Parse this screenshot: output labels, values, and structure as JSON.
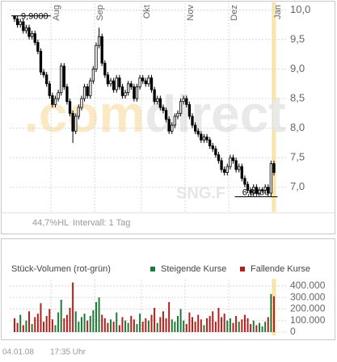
{
  "chart_data": [
    {
      "type": "candlestick",
      "categories": [
        null,
        null,
        null,
        null,
        null,
        null,
        null,
        null,
        null,
        null,
        null,
        null,
        null,
        "Aug",
        null,
        null,
        null,
        null,
        null,
        null,
        null,
        null,
        null,
        null,
        null,
        null,
        null,
        null,
        "Sep",
        null,
        null,
        null,
        null,
        null,
        null,
        null,
        null,
        null,
        null,
        null,
        null,
        null,
        null,
        null,
        "Okt",
        null,
        null,
        null,
        null,
        null,
        null,
        null,
        null,
        null,
        null,
        null,
        null,
        null,
        null,
        "Nov",
        null,
        null,
        null,
        null,
        null,
        null,
        null,
        null,
        null,
        null,
        null,
        null,
        null,
        null,
        "Dez",
        null,
        null,
        null,
        null,
        null,
        null,
        null,
        null,
        null,
        null,
        null,
        null,
        null,
        null,
        "Jan"
      ],
      "open": [
        9.9,
        9.85,
        9.75,
        9.8,
        9.65,
        9.7,
        9.55,
        9.6,
        9.45,
        9.3,
        8.95,
        8.9,
        8.75,
        8.55,
        8.4,
        8.5,
        8.6,
        9.05,
        8.7,
        8.45,
        8.25,
        7.95,
        8.2,
        8.35,
        8.5,
        8.7,
        8.55,
        8.8,
        9.0,
        9.4,
        9.55,
        9.1,
        8.9,
        8.75,
        8.8,
        8.65,
        8.85,
        8.7,
        8.55,
        8.6,
        8.75,
        8.7,
        8.5,
        8.7,
        8.85,
        8.8,
        8.75,
        8.85,
        8.65,
        8.45,
        8.5,
        8.35,
        8.3,
        8.15,
        7.95,
        8.05,
        8.2,
        8.25,
        8.45,
        8.5,
        8.4,
        8.2,
        8.05,
        7.95,
        7.9,
        7.8,
        7.85,
        7.8,
        7.7,
        7.65,
        7.55,
        7.45,
        7.3,
        7.25,
        7.35,
        7.5,
        7.45,
        7.3,
        7.35,
        7.15,
        7.05,
        6.95,
        6.9,
        7.0,
        6.9,
        6.95,
        6.95,
        7.0,
        6.9,
        7.4
      ],
      "high": [
        9.9,
        9.9,
        9.85,
        9.85,
        9.75,
        9.75,
        9.65,
        9.65,
        9.5,
        9.35,
        9.0,
        8.95,
        8.8,
        8.6,
        8.55,
        8.65,
        9.1,
        9.1,
        8.75,
        8.5,
        8.3,
        8.25,
        8.4,
        8.55,
        8.75,
        8.75,
        8.85,
        9.05,
        9.45,
        9.7,
        9.6,
        9.15,
        8.95,
        8.85,
        8.85,
        8.9,
        8.9,
        8.75,
        8.65,
        8.8,
        8.8,
        8.75,
        8.75,
        8.9,
        8.9,
        8.85,
        8.9,
        8.9,
        8.7,
        8.55,
        8.55,
        8.4,
        8.35,
        8.2,
        8.1,
        8.25,
        8.3,
        8.5,
        8.55,
        8.55,
        8.45,
        8.25,
        8.1,
        8.0,
        7.95,
        7.9,
        7.9,
        7.85,
        7.75,
        7.7,
        7.6,
        7.5,
        7.35,
        7.4,
        7.55,
        7.55,
        7.5,
        7.4,
        7.4,
        7.2,
        7.1,
        7.0,
        7.05,
        7.05,
        7.0,
        7.0,
        7.05,
        7.05,
        7.45,
        7.45
      ],
      "low": [
        9.8,
        9.7,
        9.7,
        9.6,
        9.6,
        9.5,
        9.5,
        9.4,
        9.25,
        8.9,
        8.85,
        8.7,
        8.5,
        8.35,
        8.35,
        8.45,
        8.55,
        8.65,
        8.4,
        8.2,
        7.75,
        7.9,
        8.15,
        8.3,
        8.45,
        8.5,
        8.5,
        8.75,
        8.95,
        9.35,
        9.05,
        8.85,
        8.7,
        8.7,
        8.6,
        8.6,
        8.65,
        8.5,
        8.5,
        8.55,
        8.65,
        8.45,
        8.45,
        8.65,
        8.75,
        8.7,
        8.7,
        8.6,
        8.4,
        8.4,
        8.3,
        8.25,
        8.1,
        7.9,
        7.9,
        8.0,
        8.15,
        8.2,
        8.4,
        8.35,
        8.15,
        8.0,
        7.9,
        7.85,
        7.75,
        7.75,
        7.75,
        7.65,
        7.6,
        7.5,
        7.4,
        7.25,
        7.2,
        7.2,
        7.3,
        7.4,
        7.25,
        7.25,
        7.1,
        7.0,
        6.9,
        6.85,
        6.85,
        6.85,
        6.85,
        6.9,
        6.9,
        6.85,
        6.84,
        7.2
      ],
      "close": [
        9.85,
        9.75,
        9.8,
        9.65,
        9.7,
        9.55,
        9.6,
        9.45,
        9.3,
        8.95,
        8.9,
        8.75,
        8.55,
        8.4,
        8.5,
        8.6,
        9.05,
        8.7,
        8.45,
        8.25,
        7.95,
        8.2,
        8.35,
        8.5,
        8.7,
        8.55,
        8.8,
        9.0,
        9.4,
        9.55,
        9.1,
        8.9,
        8.75,
        8.8,
        8.65,
        8.85,
        8.7,
        8.55,
        8.6,
        8.75,
        8.7,
        8.5,
        8.7,
        8.85,
        8.8,
        8.75,
        8.85,
        8.65,
        8.45,
        8.5,
        8.35,
        8.3,
        8.15,
        7.95,
        8.05,
        8.2,
        8.25,
        8.45,
        8.5,
        8.4,
        8.2,
        8.05,
        7.95,
        7.9,
        7.8,
        7.85,
        7.8,
        7.7,
        7.65,
        7.55,
        7.45,
        7.3,
        7.25,
        7.35,
        7.5,
        7.45,
        7.3,
        7.35,
        7.15,
        7.05,
        6.95,
        6.9,
        7.0,
        6.9,
        6.95,
        6.95,
        7.0,
        6.9,
        7.4,
        7.25
      ],
      "ylim": [
        6.6,
        10.1
      ],
      "yticks": [
        {
          "value": 7,
          "label": "7,0"
        },
        {
          "value": 7.5,
          "label": "7,5"
        },
        {
          "value": 8,
          "label": "8,0"
        },
        {
          "value": 8.5,
          "label": "8,5"
        },
        {
          "value": 9,
          "label": "9,0"
        },
        {
          "value": 9.5,
          "label": "9,5"
        },
        {
          "value": 10,
          "label": "10,0"
        }
      ],
      "grid": true,
      "up_color": "#ffffff",
      "down_color": "#000000",
      "highlight_color": "#fbe6a6",
      "annotations": [
        {
          "text": "9,9000",
          "value": 9.9,
          "index": 0
        },
        {
          "text": "6,8400",
          "value": 6.84,
          "index": 88
        }
      ],
      "hl_range": "44,7%HL",
      "interval": "Intervall: 1 Tag",
      "watermark": [
        ".com",
        "direct"
      ],
      "symbol": "SNG.F"
    },
    {
      "type": "bar",
      "title": "Stück-Volumen (rot-grün)",
      "legend": [
        {
          "name": "Steigende Kurse",
          "color": "#1f7a3a"
        },
        {
          "name": "Fallende Kurse",
          "color": "#b3201c"
        }
      ],
      "values": [
        120000,
        80000,
        150000,
        60000,
        100000,
        180000,
        70000,
        130000,
        160000,
        250000,
        90000,
        140000,
        200000,
        110000,
        60000,
        170000,
        280000,
        120000,
        150000,
        210000,
        430000,
        180000,
        90000,
        130000,
        160000,
        100000,
        140000,
        190000,
        260000,
        300000,
        150000,
        120000,
        80000,
        110000,
        90000,
        170000,
        60000,
        130000,
        100000,
        80000,
        140000,
        110000,
        70000,
        160000,
        90000,
        120000,
        100000,
        150000,
        210000,
        80000,
        130000,
        180000,
        120000,
        260000,
        110000,
        90000,
        140000,
        200000,
        100000,
        70000,
        170000,
        130000,
        90000,
        150000,
        110000,
        60000,
        120000,
        140000,
        180000,
        90000,
        210000,
        130000,
        160000,
        100000,
        120000,
        80000,
        140000,
        90000,
        110000,
        150000,
        120000,
        70000,
        100000,
        60000,
        80000,
        50000,
        90000,
        130000,
        330000,
        310000
      ],
      "ylim": [
        0,
        420000
      ],
      "yticks": [
        0,
        {
          "value": 100000,
          "label": "100.000"
        },
        {
          "value": 200000,
          "label": "200.000"
        },
        {
          "value": 300000,
          "label": "300.000"
        },
        {
          "value": 400000,
          "label": "400.000"
        }
      ],
      "grid": true
    }
  ],
  "footer": {
    "date": "04.01.08",
    "time": "17:35 Uhr"
  }
}
